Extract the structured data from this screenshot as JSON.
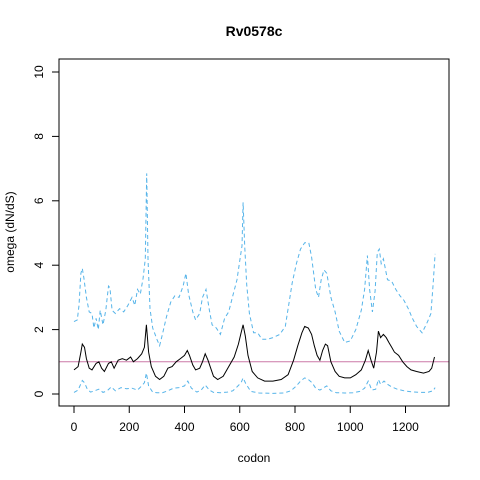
{
  "chart_data": {
    "type": "line",
    "title": "Rv0578c",
    "xlabel": "codon",
    "ylabel": "omega (dN/dS)",
    "xlim": [
      0,
      1310
    ],
    "ylim": [
      0,
      10
    ],
    "x_ticks": [
      "0",
      "200",
      "400",
      "600",
      "800",
      "1000",
      "1200"
    ],
    "y_ticks": [
      "0",
      "2",
      "4",
      "6",
      "8",
      "10"
    ],
    "x_tick_values": [
      0,
      200,
      400,
      600,
      800,
      1000,
      1200
    ],
    "y_tick_values": [
      0,
      2,
      4,
      6,
      8,
      10
    ],
    "reference_line": {
      "y": 1,
      "color": "#cc79a7"
    },
    "series": [
      {
        "style": "solid",
        "color": "#000000",
        "points": [
          [
            0,
            0.75
          ],
          [
            15,
            0.85
          ],
          [
            25,
            1.3
          ],
          [
            30,
            1.55
          ],
          [
            38,
            1.45
          ],
          [
            45,
            1.1
          ],
          [
            55,
            0.8
          ],
          [
            65,
            0.75
          ],
          [
            80,
            0.95
          ],
          [
            90,
            1.0
          ],
          [
            100,
            0.8
          ],
          [
            110,
            0.7
          ],
          [
            125,
            0.95
          ],
          [
            135,
            1.0
          ],
          [
            145,
            0.8
          ],
          [
            160,
            1.05
          ],
          [
            175,
            1.1
          ],
          [
            190,
            1.05
          ],
          [
            205,
            1.15
          ],
          [
            215,
            1.0
          ],
          [
            230,
            1.1
          ],
          [
            245,
            1.25
          ],
          [
            255,
            1.45
          ],
          [
            262,
            2.15
          ],
          [
            270,
            1.3
          ],
          [
            280,
            0.85
          ],
          [
            295,
            0.55
          ],
          [
            310,
            0.45
          ],
          [
            325,
            0.55
          ],
          [
            340,
            0.8
          ],
          [
            355,
            0.85
          ],
          [
            370,
            1.0
          ],
          [
            385,
            1.1
          ],
          [
            400,
            1.2
          ],
          [
            410,
            1.35
          ],
          [
            418,
            1.2
          ],
          [
            430,
            0.9
          ],
          [
            440,
            0.75
          ],
          [
            455,
            0.8
          ],
          [
            465,
            1.0
          ],
          [
            475,
            1.25
          ],
          [
            485,
            1.05
          ],
          [
            495,
            0.8
          ],
          [
            505,
            0.55
          ],
          [
            520,
            0.45
          ],
          [
            540,
            0.55
          ],
          [
            560,
            0.85
          ],
          [
            580,
            1.15
          ],
          [
            595,
            1.55
          ],
          [
            605,
            1.9
          ],
          [
            612,
            2.15
          ],
          [
            620,
            1.8
          ],
          [
            630,
            1.2
          ],
          [
            645,
            0.7
          ],
          [
            665,
            0.5
          ],
          [
            690,
            0.4
          ],
          [
            720,
            0.4
          ],
          [
            750,
            0.45
          ],
          [
            775,
            0.6
          ],
          [
            795,
            1.05
          ],
          [
            810,
            1.5
          ],
          [
            825,
            1.9
          ],
          [
            835,
            2.1
          ],
          [
            848,
            2.05
          ],
          [
            860,
            1.85
          ],
          [
            870,
            1.5
          ],
          [
            880,
            1.2
          ],
          [
            890,
            1.05
          ],
          [
            900,
            1.35
          ],
          [
            910,
            1.55
          ],
          [
            918,
            1.5
          ],
          [
            930,
            1.0
          ],
          [
            945,
            0.7
          ],
          [
            960,
            0.55
          ],
          [
            980,
            0.5
          ],
          [
            1000,
            0.5
          ],
          [
            1020,
            0.6
          ],
          [
            1040,
            0.75
          ],
          [
            1055,
            1.05
          ],
          [
            1065,
            1.35
          ],
          [
            1075,
            1.05
          ],
          [
            1085,
            0.8
          ],
          [
            1095,
            1.3
          ],
          [
            1102,
            1.95
          ],
          [
            1110,
            1.75
          ],
          [
            1120,
            1.85
          ],
          [
            1130,
            1.75
          ],
          [
            1140,
            1.6
          ],
          [
            1150,
            1.45
          ],
          [
            1160,
            1.3
          ],
          [
            1175,
            1.2
          ],
          [
            1190,
            1.0
          ],
          [
            1205,
            0.85
          ],
          [
            1220,
            0.75
          ],
          [
            1240,
            0.7
          ],
          [
            1265,
            0.65
          ],
          [
            1285,
            0.7
          ],
          [
            1295,
            0.8
          ],
          [
            1305,
            1.15
          ]
        ]
      },
      {
        "style": "dashed",
        "color": "#56b4e9",
        "points": [
          [
            0,
            2.25
          ],
          [
            12,
            2.3
          ],
          [
            18,
            2.75
          ],
          [
            25,
            3.75
          ],
          [
            30,
            3.9
          ],
          [
            36,
            3.6
          ],
          [
            45,
            3.0
          ],
          [
            55,
            2.55
          ],
          [
            65,
            2.5
          ],
          [
            72,
            2.05
          ],
          [
            80,
            2.35
          ],
          [
            88,
            2.0
          ],
          [
            95,
            2.6
          ],
          [
            105,
            2.15
          ],
          [
            115,
            2.6
          ],
          [
            125,
            3.35
          ],
          [
            130,
            3.3
          ],
          [
            138,
            2.6
          ],
          [
            150,
            2.5
          ],
          [
            165,
            2.65
          ],
          [
            180,
            2.55
          ],
          [
            195,
            2.75
          ],
          [
            210,
            3.0
          ],
          [
            220,
            2.75
          ],
          [
            230,
            3.25
          ],
          [
            240,
            3.1
          ],
          [
            250,
            3.6
          ],
          [
            258,
            4.2
          ],
          [
            263,
            6.85
          ],
          [
            268,
            4.2
          ],
          [
            275,
            2.65
          ],
          [
            285,
            2.05
          ],
          [
            300,
            1.7
          ],
          [
            310,
            1.5
          ],
          [
            320,
            1.85
          ],
          [
            335,
            2.4
          ],
          [
            350,
            2.85
          ],
          [
            365,
            3.05
          ],
          [
            380,
            3.0
          ],
          [
            395,
            3.35
          ],
          [
            405,
            3.75
          ],
          [
            415,
            3.1
          ],
          [
            430,
            2.55
          ],
          [
            440,
            2.3
          ],
          [
            455,
            2.5
          ],
          [
            465,
            3.0
          ],
          [
            478,
            3.25
          ],
          [
            490,
            2.6
          ],
          [
            500,
            2.15
          ],
          [
            515,
            2.05
          ],
          [
            530,
            1.85
          ],
          [
            545,
            2.35
          ],
          [
            560,
            2.55
          ],
          [
            575,
            3.05
          ],
          [
            590,
            3.55
          ],
          [
            600,
            4.15
          ],
          [
            608,
            4.6
          ],
          [
            612,
            5.95
          ],
          [
            618,
            4.6
          ],
          [
            625,
            3.4
          ],
          [
            635,
            2.5
          ],
          [
            650,
            1.9
          ],
          [
            665,
            1.9
          ],
          [
            680,
            1.7
          ],
          [
            700,
            1.7
          ],
          [
            720,
            1.75
          ],
          [
            745,
            1.85
          ],
          [
            765,
            2.1
          ],
          [
            790,
            3.45
          ],
          [
            805,
            4.05
          ],
          [
            820,
            4.5
          ],
          [
            835,
            4.7
          ],
          [
            850,
            4.7
          ],
          [
            860,
            4.25
          ],
          [
            875,
            3.25
          ],
          [
            885,
            3.0
          ],
          [
            895,
            3.55
          ],
          [
            905,
            3.85
          ],
          [
            915,
            3.75
          ],
          [
            930,
            3.0
          ],
          [
            945,
            2.55
          ],
          [
            960,
            1.95
          ],
          [
            980,
            1.6
          ],
          [
            1000,
            1.65
          ],
          [
            1020,
            2.0
          ],
          [
            1040,
            2.6
          ],
          [
            1052,
            3.25
          ],
          [
            1062,
            4.3
          ],
          [
            1070,
            3.25
          ],
          [
            1080,
            2.55
          ],
          [
            1090,
            3.2
          ],
          [
            1098,
            4.4
          ],
          [
            1105,
            4.5
          ],
          [
            1112,
            4.05
          ],
          [
            1120,
            4.2
          ],
          [
            1135,
            3.55
          ],
          [
            1150,
            3.5
          ],
          [
            1165,
            3.25
          ],
          [
            1180,
            3.05
          ],
          [
            1195,
            2.9
          ],
          [
            1210,
            2.65
          ],
          [
            1225,
            2.35
          ],
          [
            1240,
            2.1
          ],
          [
            1260,
            1.9
          ],
          [
            1280,
            2.25
          ],
          [
            1292,
            2.5
          ],
          [
            1300,
            3.4
          ],
          [
            1307,
            4.35
          ]
        ]
      },
      {
        "style": "dashed",
        "color": "#56b4e9",
        "points": [
          [
            0,
            0.05
          ],
          [
            15,
            0.12
          ],
          [
            25,
            0.32
          ],
          [
            30,
            0.42
          ],
          [
            38,
            0.35
          ],
          [
            48,
            0.15
          ],
          [
            60,
            0.06
          ],
          [
            75,
            0.1
          ],
          [
            90,
            0.15
          ],
          [
            105,
            0.05
          ],
          [
            120,
            0.1
          ],
          [
            135,
            0.22
          ],
          [
            150,
            0.1
          ],
          [
            170,
            0.2
          ],
          [
            190,
            0.16
          ],
          [
            210,
            0.18
          ],
          [
            230,
            0.12
          ],
          [
            245,
            0.25
          ],
          [
            255,
            0.35
          ],
          [
            262,
            0.65
          ],
          [
            270,
            0.25
          ],
          [
            285,
            0.06
          ],
          [
            300,
            0.04
          ],
          [
            320,
            0.04
          ],
          [
            340,
            0.1
          ],
          [
            360,
            0.18
          ],
          [
            380,
            0.2
          ],
          [
            400,
            0.25
          ],
          [
            412,
            0.4
          ],
          [
            425,
            0.18
          ],
          [
            445,
            0.06
          ],
          [
            460,
            0.12
          ],
          [
            475,
            0.28
          ],
          [
            490,
            0.12
          ],
          [
            505,
            0.05
          ],
          [
            530,
            0.04
          ],
          [
            555,
            0.06
          ],
          [
            575,
            0.1
          ],
          [
            590,
            0.22
          ],
          [
            605,
            0.35
          ],
          [
            612,
            0.5
          ],
          [
            622,
            0.32
          ],
          [
            640,
            0.08
          ],
          [
            670,
            0.03
          ],
          [
            720,
            0.02
          ],
          [
            760,
            0.03
          ],
          [
            785,
            0.1
          ],
          [
            805,
            0.25
          ],
          [
            820,
            0.4
          ],
          [
            835,
            0.5
          ],
          [
            848,
            0.45
          ],
          [
            862,
            0.35
          ],
          [
            875,
            0.18
          ],
          [
            890,
            0.12
          ],
          [
            905,
            0.2
          ],
          [
            915,
            0.25
          ],
          [
            930,
            0.1
          ],
          [
            950,
            0.04
          ],
          [
            980,
            0.03
          ],
          [
            1010,
            0.04
          ],
          [
            1035,
            0.08
          ],
          [
            1052,
            0.18
          ],
          [
            1065,
            0.4
          ],
          [
            1078,
            0.12
          ],
          [
            1092,
            0.15
          ],
          [
            1102,
            0.45
          ],
          [
            1110,
            0.3
          ],
          [
            1122,
            0.4
          ],
          [
            1135,
            0.3
          ],
          [
            1150,
            0.22
          ],
          [
            1170,
            0.15
          ],
          [
            1195,
            0.1
          ],
          [
            1220,
            0.07
          ],
          [
            1250,
            0.05
          ],
          [
            1280,
            0.05
          ],
          [
            1300,
            0.1
          ],
          [
            1307,
            0.2
          ]
        ]
      }
    ]
  }
}
